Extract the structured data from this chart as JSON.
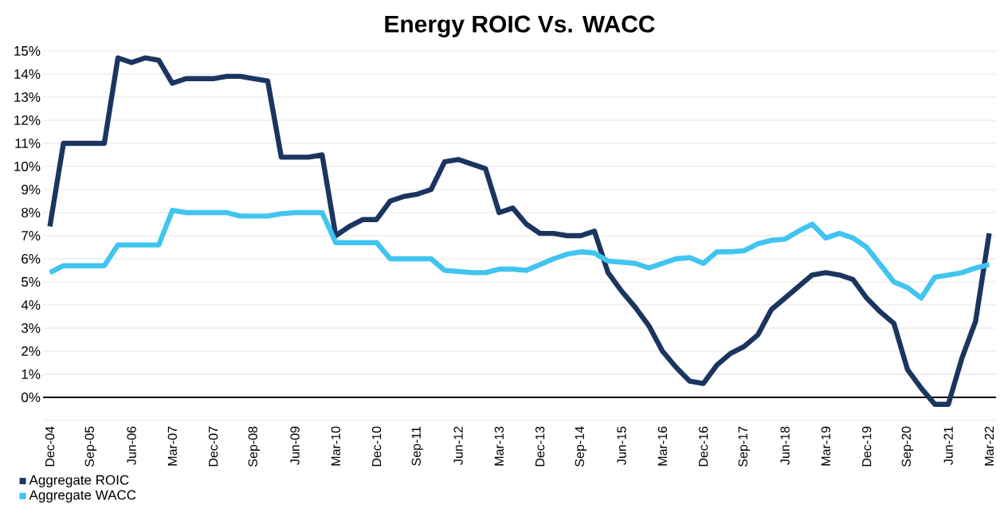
{
  "chart_data": {
    "type": "line",
    "title": "Energy ROIC Vs. WACC",
    "categories": [
      "Dec-04",
      null,
      null,
      "Sep-05",
      null,
      null,
      "Jun-06",
      null,
      null,
      "Mar-07",
      null,
      null,
      "Dec-07",
      null,
      null,
      "Sep-08",
      null,
      null,
      "Jun-09",
      null,
      null,
      "Mar-10",
      null,
      null,
      "Dec-10",
      null,
      null,
      "Sep-11",
      null,
      null,
      "Jun-12",
      null,
      null,
      "Mar-13",
      null,
      null,
      "Dec-13",
      null,
      null,
      "Sep-14",
      null,
      null,
      "Jun-15",
      null,
      null,
      "Mar-16",
      null,
      null,
      "Dec-16",
      null,
      null,
      "Sep-17",
      null,
      null,
      "Jun-18",
      null,
      null,
      "Mar-19",
      null,
      null,
      "Dec-19",
      null,
      null,
      "Sep-20",
      null,
      null,
      "Jun-21",
      null,
      null,
      "Mar-22"
    ],
    "series": [
      {
        "name": "Aggregate ROIC",
        "color": "#1c3560",
        "values": [
          7.4,
          11.0,
          11.0,
          11.0,
          11.0,
          14.7,
          14.5,
          14.7,
          14.6,
          13.6,
          13.8,
          13.8,
          13.8,
          13.9,
          13.9,
          13.8,
          13.7,
          10.4,
          10.4,
          10.4,
          10.5,
          7.0,
          7.4,
          7.7,
          7.7,
          8.5,
          8.7,
          8.8,
          9.0,
          10.2,
          10.3,
          10.1,
          9.9,
          8.0,
          8.2,
          7.5,
          7.1,
          7.1,
          7.0,
          7.0,
          7.2,
          5.4,
          4.6,
          3.9,
          3.1,
          2.0,
          1.3,
          0.7,
          0.6,
          1.4,
          1.9,
          2.2,
          2.7,
          3.8,
          4.3,
          4.8,
          5.3,
          5.4,
          5.3,
          5.1,
          4.3,
          3.7,
          3.2,
          1.2,
          0.4,
          -0.3,
          -0.3,
          1.7,
          3.3,
          7.1
        ]
      },
      {
        "name": "Aggregate WACC",
        "color": "#41c4f0",
        "values": [
          5.4,
          5.7,
          5.7,
          5.7,
          5.7,
          6.6,
          6.6,
          6.6,
          6.6,
          8.1,
          8.0,
          8.0,
          8.0,
          8.0,
          7.85,
          7.85,
          7.85,
          7.95,
          8.0,
          8.0,
          8.0,
          6.7,
          6.7,
          6.7,
          6.7,
          6.0,
          6.0,
          6.0,
          6.0,
          5.5,
          5.45,
          5.4,
          5.4,
          5.55,
          5.55,
          5.5,
          5.75,
          6.0,
          6.2,
          6.3,
          6.25,
          5.9,
          5.85,
          5.8,
          5.6,
          5.8,
          6.0,
          6.05,
          5.8,
          6.3,
          6.3,
          6.35,
          6.65,
          6.8,
          6.85,
          7.2,
          7.5,
          6.9,
          7.1,
          6.9,
          6.5,
          5.75,
          5.0,
          4.75,
          4.3,
          5.2,
          5.3,
          5.4,
          5.6,
          5.75
        ]
      }
    ],
    "ylim": [
      -1,
      15
    ],
    "yticks": [
      {
        "value": -1,
        "label": null
      },
      {
        "value": 0,
        "label": "0%"
      },
      {
        "value": 1,
        "label": "1%"
      },
      {
        "value": 2,
        "label": "2%"
      },
      {
        "value": 3,
        "label": "3%"
      },
      {
        "value": 4,
        "label": "4%"
      },
      {
        "value": 5,
        "label": "5%"
      },
      {
        "value": 6,
        "label": "6%"
      },
      {
        "value": 7,
        "label": "7%"
      },
      {
        "value": 8,
        "label": "8%"
      },
      {
        "value": 9,
        "label": "9%"
      },
      {
        "value": 10,
        "label": "10%"
      },
      {
        "value": 11,
        "label": "11%"
      },
      {
        "value": 12,
        "label": "12%"
      },
      {
        "value": 13,
        "label": "13%"
      },
      {
        "value": 14,
        "label": "14%"
      },
      {
        "value": 15,
        "label": "15%"
      }
    ],
    "ref_lines": [
      {
        "axis": "y",
        "value": 0,
        "color": "#000000"
      }
    ],
    "grid": "y",
    "legend": "bottom left",
    "marker": "none",
    "line_style": "solid"
  }
}
